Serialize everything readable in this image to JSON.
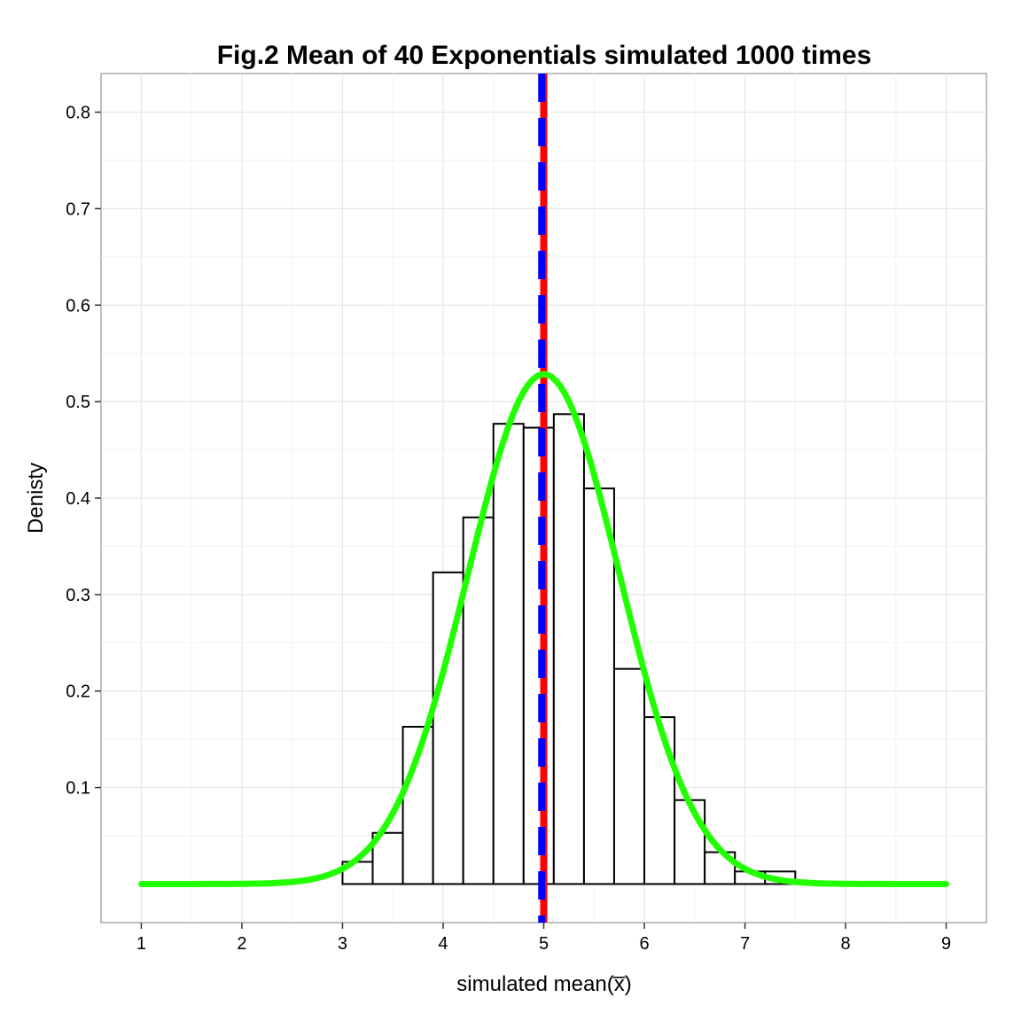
{
  "chart_data": {
    "type": "bar",
    "title": "Fig.2 Mean of 40 Exponentials simulated 1000 times",
    "xlabel": "simulated mean(",
    "xlabel_symbol": "x̅",
    "xlabel_suffix": ")",
    "ylabel": "Denisty",
    "xlim": [
      0.6,
      9.4
    ],
    "ylim": [
      -0.04,
      0.84
    ],
    "x_ticks": [
      "1",
      "2",
      "3",
      "4",
      "5",
      "6",
      "7",
      "8",
      "9"
    ],
    "y_ticks": [
      "0.1",
      "0.2",
      "0.3",
      "0.4",
      "0.5",
      "0.6",
      "0.7",
      "0.8"
    ],
    "grid": true,
    "background": "#ffffff",
    "grid_color": "#e6e6e6",
    "histogram": {
      "bin_width": 0.3,
      "bins": [
        {
          "start": 3.0,
          "density": 0.023
        },
        {
          "start": 3.3,
          "density": 0.053
        },
        {
          "start": 3.6,
          "density": 0.163
        },
        {
          "start": 3.9,
          "density": 0.323
        },
        {
          "start": 4.2,
          "density": 0.38
        },
        {
          "start": 4.5,
          "density": 0.477
        },
        {
          "start": 4.8,
          "density": 0.473
        },
        {
          "start": 5.1,
          "density": 0.487
        },
        {
          "start": 5.4,
          "density": 0.41
        },
        {
          "start": 5.7,
          "density": 0.223
        },
        {
          "start": 6.0,
          "density": 0.173
        },
        {
          "start": 6.3,
          "density": 0.087
        },
        {
          "start": 6.6,
          "density": 0.033
        },
        {
          "start": 6.9,
          "density": 0.013
        },
        {
          "start": 7.2,
          "density": 0.013
        }
      ],
      "fill": "#ffffff",
      "stroke": "#000000"
    },
    "normal_curve": {
      "mean": 5.0,
      "sd": 0.755,
      "x_range": [
        1,
        9
      ],
      "color": "#22ff00"
    },
    "vlines": [
      {
        "x": 5.0,
        "color": "#ff0000",
        "style": "solid"
      },
      {
        "x": 4.98,
        "color": "#0000ff",
        "style": "dashed"
      }
    ]
  }
}
